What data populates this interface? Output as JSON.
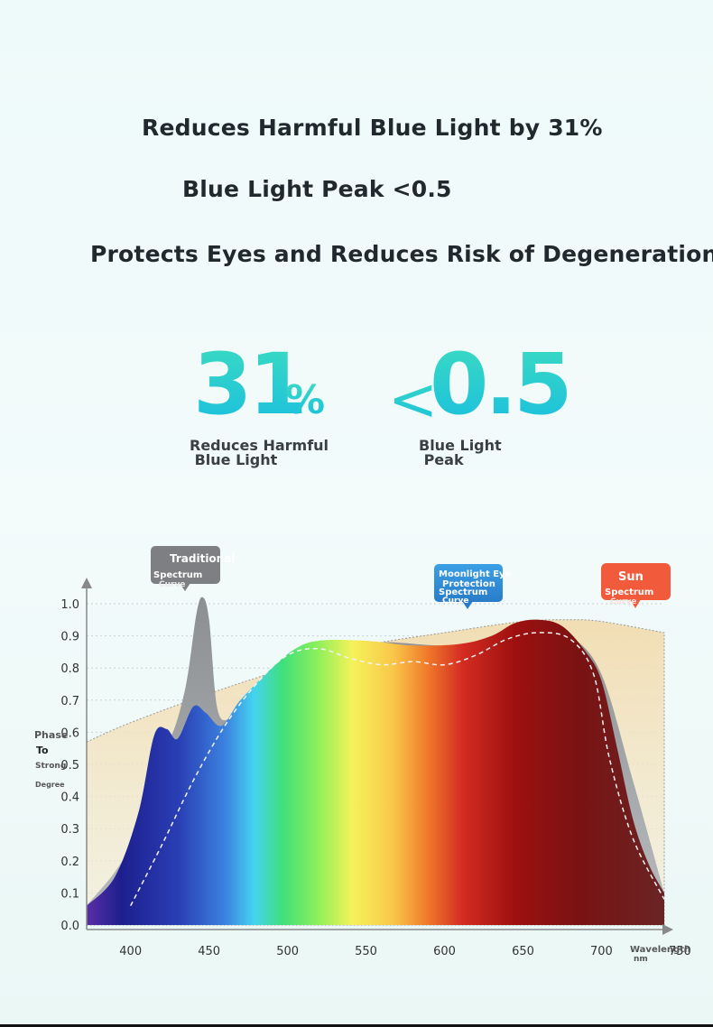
{
  "headlines": {
    "line1": "Reduces Harmful Blue Light by 31%",
    "line2": "Blue Light Peak <0.5",
    "line3": "Protects Eyes and Reduces Risk of Degeneration"
  },
  "stats": {
    "stat1_value": "31",
    "stat1_unit": "%",
    "stat1_caption": "Reduces Harmful\n Blue Light",
    "stat2_prefix": "<",
    "stat2_value": "0.5",
    "stat2_caption": "Blue Light\n Peak"
  },
  "colors": {
    "accent_gradient_top": "#3ddcc0",
    "accent_gradient_bottom": "#17bde0",
    "traditional_tag": "#7a7a7a",
    "moonlight_tag": "#2f8fd6",
    "sun_tag": "#f15a3a"
  },
  "chart_data": {
    "type": "area",
    "xlabel": "Wavelength nm",
    "ylabel": "Phase To Strong Degree",
    "x_ticks": [
      400,
      450,
      500,
      550,
      600,
      650,
      700,
      750
    ],
    "y_ticks": [
      "0.0",
      "0.1",
      "0.2",
      "0.3",
      "0.4",
      "0.5",
      "0.6",
      "0.7",
      "0.8",
      "0.9",
      "1.0"
    ],
    "xlim": [
      372,
      740
    ],
    "ylim": [
      0,
      1.05
    ],
    "grid": true,
    "series": [
      {
        "name": "Sun Spectrum Curve",
        "color": "#f3e2bd",
        "points": [
          [
            372,
            0.57
          ],
          [
            400,
            0.63
          ],
          [
            450,
            0.72
          ],
          [
            500,
            0.8
          ],
          [
            550,
            0.87
          ],
          [
            600,
            0.91
          ],
          [
            650,
            0.945
          ],
          [
            680,
            0.95
          ],
          [
            700,
            0.945
          ],
          [
            740,
            0.91
          ]
        ]
      },
      {
        "name": "Traditional Spectrum Curve",
        "color": "#8f9396",
        "points": [
          [
            372,
            0.06
          ],
          [
            400,
            0.25
          ],
          [
            415,
            0.58
          ],
          [
            425,
            0.58
          ],
          [
            435,
            0.74
          ],
          [
            442,
            0.97
          ],
          [
            446,
            1.02
          ],
          [
            450,
            0.95
          ],
          [
            455,
            0.68
          ],
          [
            462,
            0.64
          ],
          [
            470,
            0.7
          ],
          [
            490,
            0.78
          ],
          [
            520,
            0.86
          ],
          [
            560,
            0.88
          ],
          [
            600,
            0.87
          ],
          [
            630,
            0.89
          ],
          [
            655,
            0.95
          ],
          [
            680,
            0.9
          ],
          [
            700,
            0.78
          ],
          [
            720,
            0.45
          ],
          [
            740,
            0.1
          ]
        ]
      },
      {
        "name": "Moonlight Eye Protection Spectrum Curve",
        "color": "#9b1414",
        "points": [
          [
            372,
            0.06
          ],
          [
            390,
            0.15
          ],
          [
            405,
            0.35
          ],
          [
            415,
            0.59
          ],
          [
            423,
            0.61
          ],
          [
            430,
            0.58
          ],
          [
            440,
            0.68
          ],
          [
            448,
            0.66
          ],
          [
            458,
            0.62
          ],
          [
            470,
            0.7
          ],
          [
            490,
            0.8
          ],
          [
            505,
            0.86
          ],
          [
            520,
            0.885
          ],
          [
            550,
            0.885
          ],
          [
            580,
            0.87
          ],
          [
            610,
            0.875
          ],
          [
            630,
            0.9
          ],
          [
            645,
            0.94
          ],
          [
            660,
            0.95
          ],
          [
            675,
            0.93
          ],
          [
            690,
            0.85
          ],
          [
            700,
            0.76
          ],
          [
            710,
            0.55
          ],
          [
            720,
            0.33
          ],
          [
            730,
            0.19
          ],
          [
            740,
            0.1
          ]
        ]
      },
      {
        "name": "dashed reference",
        "color": "#f0f0f0",
        "points": [
          [
            400,
            0.06
          ],
          [
            420,
            0.25
          ],
          [
            440,
            0.45
          ],
          [
            460,
            0.62
          ],
          [
            480,
            0.75
          ],
          [
            500,
            0.84
          ],
          [
            520,
            0.86
          ],
          [
            540,
            0.83
          ],
          [
            560,
            0.81
          ],
          [
            580,
            0.82
          ],
          [
            600,
            0.81
          ],
          [
            620,
            0.84
          ],
          [
            640,
            0.89
          ],
          [
            660,
            0.91
          ],
          [
            680,
            0.89
          ],
          [
            695,
            0.78
          ],
          [
            705,
            0.52
          ],
          [
            720,
            0.27
          ],
          [
            740,
            0.08
          ]
        ]
      }
    ],
    "tags": {
      "traditional": "Traditional",
      "traditional_sub1": "Spectrum",
      "traditional_sub2": "Curve",
      "moonlight": "Moonlight Eye",
      "moonlight_sub1": "Protection",
      "moonlight_sub2": "Spectrum",
      "moonlight_sub3": "Curve",
      "sun": "Sun",
      "sun_sub1": "Spectrum",
      "sun_sub2": "Curve"
    },
    "axis_text": {
      "y_l1": "Phase",
      "y_l2": "To",
      "y_l3": "Strong",
      "y_l4": "Degree",
      "x_l1": "Wavelength",
      "x_l2": "nm"
    }
  }
}
